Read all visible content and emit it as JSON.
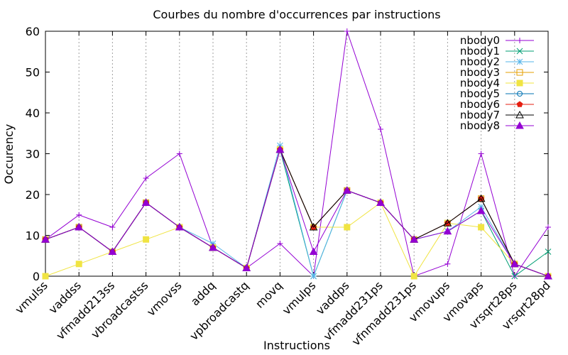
{
  "chart_data": {
    "type": "line",
    "title": "Courbes du nombre d'occurrences par instructions",
    "xlabel": "Instructions",
    "ylabel": "Occurency",
    "ylim": [
      0,
      60
    ],
    "yticks": [
      0,
      10,
      20,
      30,
      40,
      50,
      60
    ],
    "grid": "vertical dotted",
    "legend_position": "top-right",
    "categories": [
      "vmulss",
      "vaddss",
      "vfmadd213ss",
      "vbroadcastss",
      "vmovss",
      "addq",
      "vpbroadcastq",
      "movq",
      "vmulps",
      "vaddps",
      "vfmadd231ps",
      "vfnmadd231ps",
      "vmovups",
      "vmovaps",
      "vrsqrt28ps",
      "vrsqrt28pd"
    ],
    "series": [
      {
        "name": "nbody0",
        "color": "#9400d3",
        "marker": "plus",
        "values": [
          9,
          15,
          12,
          24,
          30,
          7,
          2,
          8,
          0,
          60,
          36,
          0,
          3,
          30,
          0,
          12
        ]
      },
      {
        "name": "nbody1",
        "color": "#009e73",
        "marker": "cross",
        "values": [
          9,
          12,
          6,
          18,
          12,
          7,
          2,
          31,
          0,
          21,
          18,
          9,
          11,
          16,
          0,
          6
        ]
      },
      {
        "name": "nbody2",
        "color": "#56b4e9",
        "marker": "star",
        "values": [
          9,
          12,
          6,
          18,
          12,
          8,
          2,
          32,
          0,
          21,
          18,
          9,
          11,
          17,
          3,
          0
        ]
      },
      {
        "name": "nbody3",
        "color": "#e69f00",
        "marker": "square",
        "values": [
          9,
          12,
          6,
          18,
          12,
          7,
          2,
          31,
          12,
          21,
          18,
          9,
          13,
          19,
          3,
          0
        ]
      },
      {
        "name": "nbody4",
        "color": "#f0e442",
        "marker": "filled-square",
        "values": [
          0,
          3,
          6,
          9,
          12,
          7,
          2,
          31,
          12,
          12,
          18,
          0,
          13,
          12,
          3,
          0
        ]
      },
      {
        "name": "nbody5",
        "color": "#0072b2",
        "marker": "circle",
        "values": [
          9,
          12,
          6,
          18,
          12,
          7,
          2,
          31,
          12,
          21,
          18,
          9,
          13,
          19,
          3,
          0
        ]
      },
      {
        "name": "nbody6",
        "color": "#e51e10",
        "marker": "filled-pentagon",
        "values": [
          9,
          12,
          6,
          18,
          12,
          7,
          2,
          31,
          12,
          21,
          18,
          9,
          13,
          19,
          3,
          0
        ]
      },
      {
        "name": "nbody7",
        "color": "#000000",
        "marker": "triangle",
        "values": [
          9,
          12,
          6,
          18,
          12,
          7,
          2,
          31,
          12,
          21,
          18,
          9,
          13,
          19,
          3,
          0
        ]
      },
      {
        "name": "nbody8",
        "color": "#9400d3",
        "marker": "filled-triangle",
        "values": [
          9,
          12,
          6,
          18,
          12,
          7,
          2,
          31,
          6,
          21,
          18,
          9,
          11,
          16,
          3,
          0
        ]
      }
    ]
  }
}
